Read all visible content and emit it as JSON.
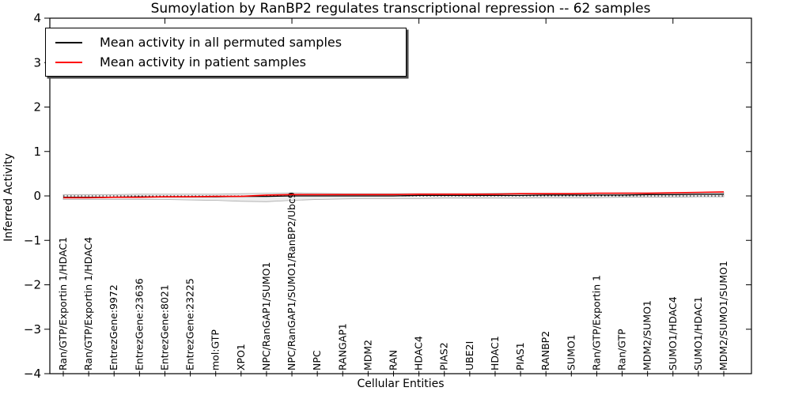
{
  "title": "Sumoylation by RanBP2 regulates transcriptional repression -- 62 samples",
  "chart_data": {
    "type": "line",
    "title": "Sumoylation by RanBP2 regulates transcriptional repression -- 62 samples",
    "xlabel": "Cellular Entities",
    "ylabel": "Inferred Activity",
    "ylim": [
      -4,
      4
    ],
    "yticks": [
      -4,
      -3,
      -2,
      -1,
      0,
      1,
      2,
      3,
      4
    ],
    "grid": false,
    "legend_position": "upper left",
    "categories": [
      "Ran/GTP/Exportin 1/HDAC1",
      "Ran/GTP/Exportin 1/HDAC4",
      "EntrezGene:9972",
      "EntrezGene:23636",
      "EntrezGene:8021",
      "EntrezGene:23225",
      "mol:GTP",
      "XPO1",
      "NPC/RanGAP1/SUMO1",
      "NPC/RanGAP1/SUMO1/RanBP2/Ubc9",
      "NPC",
      "RANGAP1",
      "MDM2",
      "RAN",
      "HDAC4",
      "PIAS2",
      "UBE2I",
      "HDAC1",
      "PIAS1",
      "RANBP2",
      "SUMO1",
      "Ran/GTP/Exportin 1",
      "Ran/GTP",
      "MDM2/SUMO1",
      "SUMO1/HDAC4",
      "SUMO1/HDAC1",
      "MDM2/SUMO1/SUMO1"
    ],
    "series": [
      {
        "name": "Mean activity in all permuted samples",
        "color": "#000000",
        "line_style": "solid",
        "values": [
          -0.03,
          -0.03,
          -0.03,
          -0.02,
          -0.02,
          -0.02,
          -0.02,
          -0.01,
          -0.01,
          0.0,
          0.0,
          0.0,
          0.0,
          0.0,
          0.01,
          0.01,
          0.01,
          0.01,
          0.01,
          0.02,
          0.02,
          0.02,
          0.02,
          0.03,
          0.03,
          0.04,
          0.04
        ]
      },
      {
        "name": "Mean activity in patient samples",
        "color": "#ff0000",
        "line_style": "solid",
        "values": [
          -0.04,
          -0.04,
          -0.03,
          -0.03,
          -0.02,
          -0.02,
          -0.01,
          -0.01,
          0.02,
          0.03,
          0.03,
          0.03,
          0.03,
          0.03,
          0.04,
          0.04,
          0.04,
          0.04,
          0.05,
          0.05,
          0.05,
          0.06,
          0.06,
          0.06,
          0.07,
          0.08,
          0.09
        ]
      }
    ],
    "band": {
      "name": "permuted activity spread",
      "fill_color": "#ededed",
      "edge_color": "#aaaaaa",
      "upper": [
        0.03,
        0.03,
        0.03,
        0.04,
        0.04,
        0.04,
        0.04,
        0.05,
        0.06,
        0.07,
        0.06,
        0.05,
        0.05,
        0.05,
        0.05,
        0.05,
        0.05,
        0.06,
        0.06,
        0.06,
        0.06,
        0.06,
        0.07,
        0.07,
        0.07,
        0.08,
        0.08
      ],
      "lower": [
        -0.08,
        -0.08,
        -0.08,
        -0.08,
        -0.08,
        -0.09,
        -0.1,
        -0.12,
        -0.13,
        -0.1,
        -0.08,
        -0.07,
        -0.06,
        -0.06,
        -0.06,
        -0.05,
        -0.05,
        -0.05,
        -0.05,
        -0.04,
        -0.04,
        -0.04,
        -0.03,
        -0.03,
        -0.03,
        -0.02,
        -0.02
      ]
    },
    "zero_line": {
      "value": 0,
      "style": "dotted",
      "color": "#000000"
    }
  }
}
